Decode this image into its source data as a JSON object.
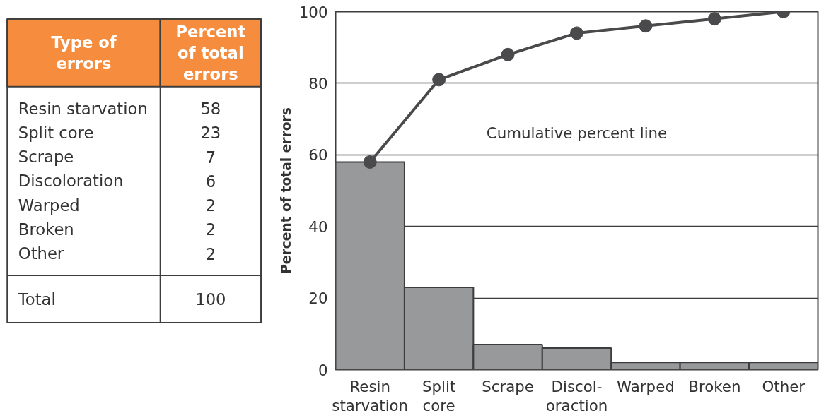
{
  "chart_data": [
    {
      "type": "other",
      "annotations": [
        "Type of\nerrors",
        "Percent\nof total\nerrors",
        "Resin starvation",
        "58",
        "Split core",
        "23",
        "Scrape",
        "7",
        "Discoloration",
        "6",
        "Warped",
        "2",
        "Broken",
        "2",
        "Other",
        "2",
        "Total",
        "100"
      ]
    },
    {
      "type": "bar",
      "ylabel": "Percent of total errors",
      "categories": [
        "Resin\nstarvation",
        "Split\ncore",
        "Scrape",
        "Discol-\noraction",
        "Warped",
        "Broken",
        "Other"
      ],
      "series": [
        {
          "type": "bar",
          "color": "#98999b",
          "values": [
            58,
            23,
            7,
            6,
            2,
            2,
            2
          ]
        },
        {
          "type": "line",
          "color": "#4a4a4c",
          "values": [
            58,
            81,
            88,
            94,
            96,
            98,
            100
          ]
        }
      ],
      "ylim": [
        0,
        100
      ],
      "yticks": [
        0,
        20,
        40,
        60,
        80,
        100
      ],
      "grid": "y",
      "marker": "circle",
      "line_style": "solid",
      "annotations": [
        "Cumulative percent line"
      ]
    }
  ]
}
